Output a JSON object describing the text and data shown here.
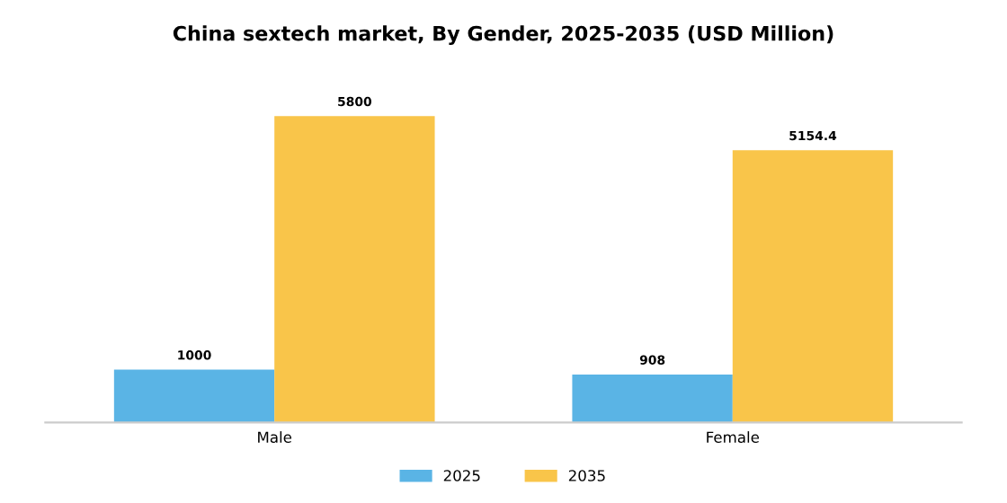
{
  "chart_data": {
    "type": "bar",
    "title": "China sextech market, By Gender, 2025-2035 (USD Million)",
    "categories": [
      "Male",
      "Female"
    ],
    "series": [
      {
        "name": "2025",
        "color": "#5ab4e5",
        "values": [
          1000,
          908
        ]
      },
      {
        "name": "2035",
        "color": "#f9c54a",
        "values": [
          5800,
          5154.4
        ]
      }
    ],
    "data_labels": true,
    "legend": "bottom",
    "tick_labels": "x"
  }
}
